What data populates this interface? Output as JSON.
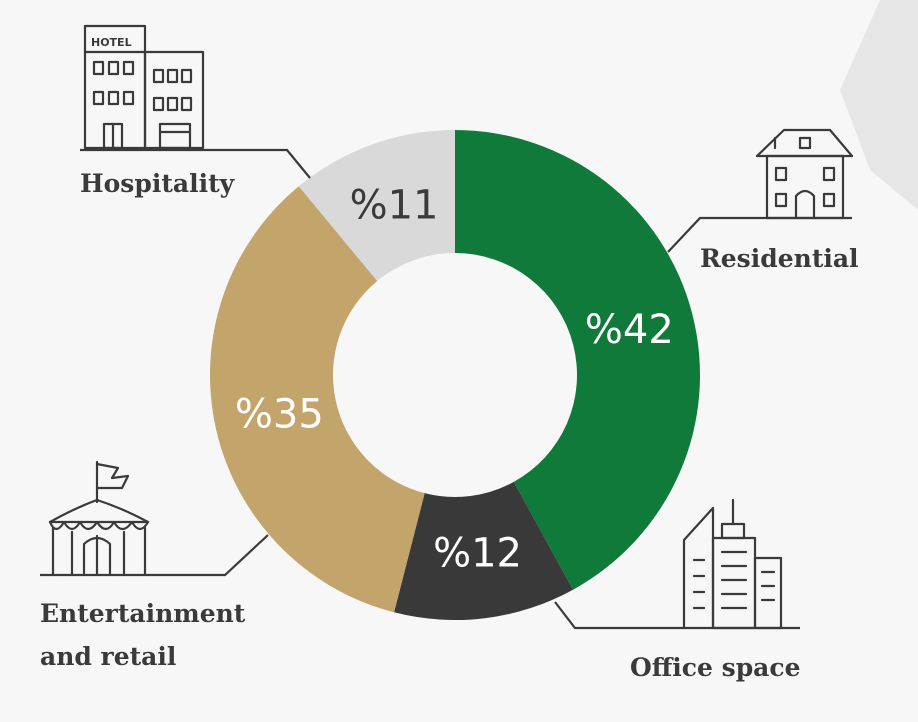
{
  "chart_data": {
    "type": "pie",
    "variant": "donut",
    "start_angle_deg": 0,
    "direction": "clockwise",
    "slices": [
      {
        "key": "residential",
        "label": "Residential",
        "value": 42,
        "value_label": "%42",
        "color": "#0f7a3a",
        "text_color": "#ffffff",
        "icon": "house-icon"
      },
      {
        "key": "office",
        "label": "Office space",
        "value": 12,
        "value_label": "%12",
        "color": "#3a393a",
        "text_color": "#ffffff",
        "icon": "office-building-icon"
      },
      {
        "key": "entertainment",
        "label_lines": [
          "Entertainment",
          "and retail"
        ],
        "value": 35,
        "value_label": "%35",
        "color": "#c3a56c",
        "text_color": "#ffffff",
        "icon": "circus-tent-icon"
      },
      {
        "key": "hospitality",
        "label": "Hospitality",
        "value": 11,
        "value_label": "%11",
        "color": "#d9d9d9",
        "text_color": "#3a3a3a",
        "icon": "hotel-icon",
        "icon_text": "HOTEL"
      }
    ]
  }
}
